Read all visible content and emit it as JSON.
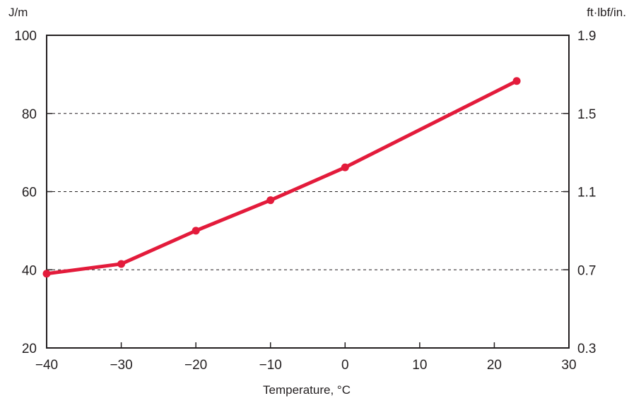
{
  "chart_data": {
    "type": "line",
    "title": "",
    "xlabel": "Temperature, °C",
    "ylabel_left_unit": "J/m",
    "ylabel_right_unit": "ft·lbf/in.",
    "xlim": [
      -40,
      30
    ],
    "ylim": [
      20,
      100
    ],
    "x_ticks": [
      -40,
      -30,
      -20,
      -10,
      0,
      10,
      20,
      30
    ],
    "x_tick_labels": [
      "−40",
      "−30",
      "−20",
      "−10",
      "0",
      "10",
      "20",
      "30"
    ],
    "y_ticks_left": [
      20,
      40,
      60,
      80,
      100
    ],
    "y_tick_labels_left": [
      "20",
      "40",
      "60",
      "80",
      "100"
    ],
    "y_tick_labels_right": [
      "0.3",
      "0.7",
      "1.1",
      "1.5",
      "1.9"
    ],
    "grid": "horizontal dashed at 40, 60, 80",
    "grid_values": [
      40,
      60,
      80
    ],
    "series_color": "#e31b3b",
    "series": [
      {
        "x": [
          -40,
          -30,
          -20,
          -10,
          0,
          23
        ],
        "y": [
          39,
          41.5,
          50,
          57.8,
          66.2,
          88.3
        ]
      }
    ]
  }
}
